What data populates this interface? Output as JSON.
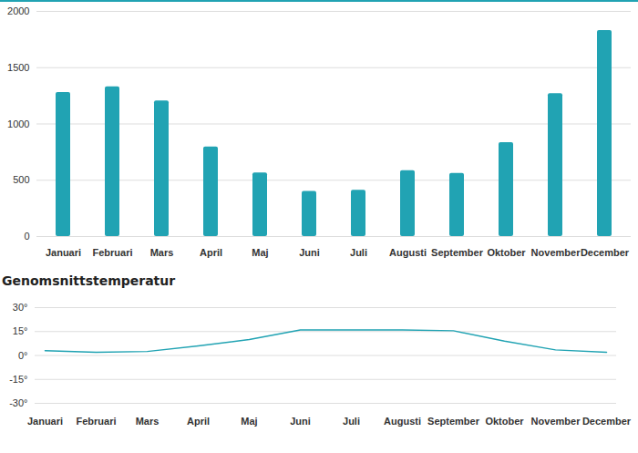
{
  "chart_data": [
    {
      "type": "bar",
      "categories": [
        "Januari",
        "Februari",
        "Mars",
        "April",
        "Maj",
        "Juni",
        "Juli",
        "Augusti",
        "September",
        "Oktober",
        "November",
        "December"
      ],
      "values": [
        1280,
        1330,
        1205,
        795,
        565,
        400,
        410,
        585,
        560,
        835,
        1270,
        1830
      ],
      "color": "#21a3b3",
      "ylim": [
        0,
        2000
      ],
      "yticks": [
        0,
        500,
        1000,
        1500,
        2000
      ],
      "grid": true
    },
    {
      "type": "line",
      "title": "Genomsnittstemperatur",
      "categories": [
        "Januari",
        "Februari",
        "Mars",
        "April",
        "Maj",
        "Juni",
        "Juli",
        "Augusti",
        "September",
        "Oktober",
        "November",
        "December"
      ],
      "values": [
        3,
        2,
        2.5,
        6,
        10,
        16,
        16,
        16,
        15.5,
        9,
        3.5,
        2
      ],
      "color": "#21a3b3",
      "ylim": [
        -30,
        30
      ],
      "yticks": [
        {
          "value": -30,
          "label": "-30°"
        },
        {
          "value": -15,
          "label": "-15°"
        },
        {
          "value": 0,
          "label": "0°"
        },
        {
          "value": 15,
          "label": "15°"
        },
        {
          "value": 30,
          "label": "30°"
        }
      ],
      "grid": true
    }
  ]
}
